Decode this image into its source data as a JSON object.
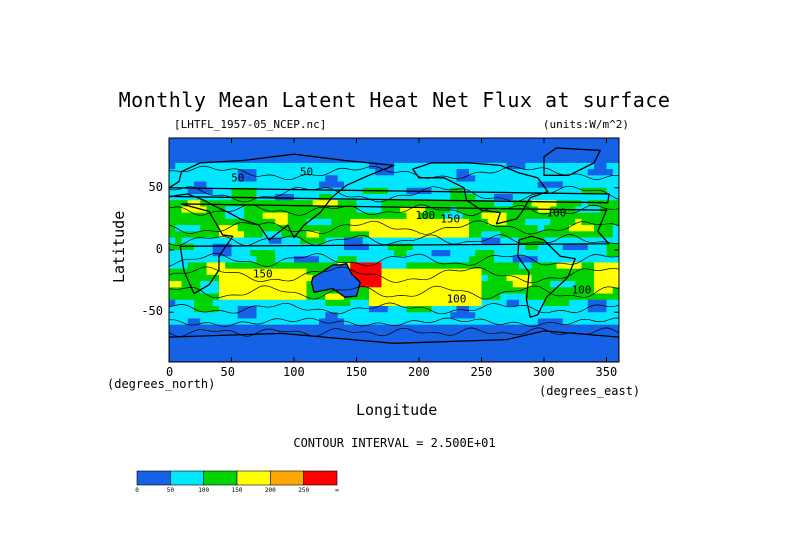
{
  "chart_data": {
    "type": "heatmap",
    "title": "Monthly Mean Latent Heat Net Flux at surface",
    "file_label": "[LHTFL_1957-05_NCEP.nc]",
    "units_label": "(units:W/m^2)",
    "xlabel": "Longitude",
    "ylabel": "Latitude",
    "x_unit_label": "(degrees_east)",
    "y_unit_label": "(degrees_north)",
    "xlim": [
      0,
      360
    ],
    "ylim": [
      -90,
      90
    ],
    "x_ticks": [
      0,
      50,
      100,
      150,
      200,
      250,
      300,
      350
    ],
    "y_ticks": [
      50,
      0,
      -50
    ],
    "contour_interval_text": "CONTOUR INTERVAL = 2.500E+01",
    "contour_labels": [
      {
        "text": "50",
        "lon": 55,
        "lat": 55
      },
      {
        "text": "50",
        "lon": 110,
        "lat": 60
      },
      {
        "text": "100",
        "lon": 205,
        "lat": 25
      },
      {
        "text": "150",
        "lon": 225,
        "lat": 22
      },
      {
        "text": "100",
        "lon": 310,
        "lat": 27
      },
      {
        "text": "150",
        "lon": 75,
        "lat": -22
      },
      {
        "text": "100",
        "lon": 230,
        "lat": -42
      },
      {
        "text": "100",
        "lon": 330,
        "lat": -35
      }
    ],
    "colorbar": {
      "bounds": [
        "0",
        "50",
        "100",
        "150",
        "200",
        "250",
        "∞"
      ],
      "colors": [
        "#1662e6",
        "#00e6ff",
        "#00d300",
        "#ffff00",
        "#ffa500",
        "#ff0000"
      ]
    },
    "field_notes": {
      "background_level": 1,
      "regions": [
        {
          "name": "south-pacific-high",
          "lon": [
            160,
            250
          ],
          "lat": [
            -45,
            -15
          ],
          "level": 3
        },
        {
          "name": "south-indian-high",
          "lon": [
            40,
            110
          ],
          "lat": [
            -40,
            -15
          ],
          "level": 3
        },
        {
          "name": "australia-east-peak",
          "lon": [
            145,
            170
          ],
          "lat": [
            -30,
            -12
          ],
          "level": 5
        },
        {
          "name": "north-pacific-band",
          "lon": [
            160,
            240
          ],
          "lat": [
            12,
            25
          ],
          "level": 3
        },
        {
          "name": "south-atlantic-high",
          "lon": [
            340,
            360
          ],
          "lat": [
            -30,
            -10
          ],
          "level": 3
        },
        {
          "name": "southern-ocean",
          "lon": [
            0,
            360
          ],
          "lat": [
            -90,
            -58
          ],
          "level": 0
        },
        {
          "name": "arctic",
          "lon": [
            0,
            360
          ],
          "lat": [
            70,
            90
          ],
          "level": 0
        }
      ]
    }
  }
}
